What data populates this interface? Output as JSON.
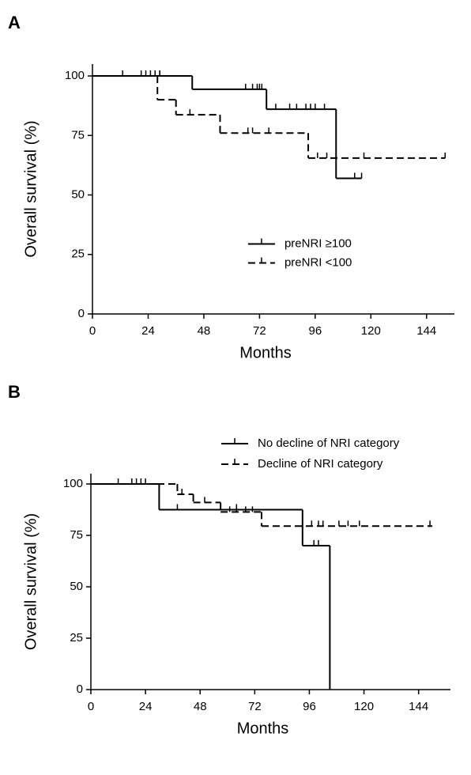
{
  "chart_data": [
    {
      "type": "survival",
      "panel": "A",
      "x_label": "Months",
      "y_label": "Overall survival (%)",
      "xlim": [
        0,
        156
      ],
      "ylim": [
        0,
        105
      ],
      "xticks": [
        0,
        24,
        48,
        72,
        96,
        120,
        144
      ],
      "yticks": [
        0,
        25,
        50,
        75,
        100
      ],
      "legend": "center",
      "series": [
        {
          "name": "preNRI ≥100",
          "color": "#000000",
          "linestyle": "solid",
          "x": [
            0,
            43,
            75,
            105,
            116
          ],
          "values": [
            100,
            94.4,
            86,
            57,
            57
          ],
          "censored": {
            "x": [
              13,
              21,
              23,
              25,
              27,
              29,
              66,
              69,
              71,
              72,
              73,
              79,
              85,
              88,
              92,
              94,
              96,
              100,
              113,
              116
            ],
            "values": [
              100,
              100,
              100,
              100,
              100,
              100,
              94.4,
              94.4,
              94.4,
              94.4,
              94.4,
              86,
              86,
              86,
              86,
              86,
              86,
              86,
              57,
              57
            ]
          }
        },
        {
          "name": "preNRI <100",
          "color": "#000000",
          "linestyle": "dashed",
          "x": [
            0,
            28,
            36,
            55,
            93,
            152
          ],
          "values": [
            100,
            90,
            83.7,
            76,
            65.5,
            65.5
          ],
          "censored": {
            "x": [
              29,
              42,
              67,
              69,
              76,
              97,
              101,
              117,
              152
            ],
            "values": [
              100,
              83.7,
              76,
              76,
              76,
              65.5,
              65.5,
              65.5,
              65.5
            ]
          }
        }
      ]
    },
    {
      "type": "survival",
      "panel": "B",
      "x_label": "Months",
      "y_label": "Overall survival (%)",
      "xlim": [
        0,
        158
      ],
      "ylim": [
        0,
        105
      ],
      "xticks": [
        0,
        24,
        48,
        72,
        96,
        120,
        144
      ],
      "yticks": [
        0,
        25,
        50,
        75,
        100
      ],
      "legend": "upper right",
      "series": [
        {
          "name": "No decline of NRI category",
          "color": "#000000",
          "linestyle": "solid",
          "x": [
            0,
            30,
            93,
            105
          ],
          "values": [
            100,
            87.5,
            70,
            0
          ],
          "censored": {
            "x": [
              12,
              18,
              20,
              22,
              24,
              38,
              64,
              98,
              100
            ],
            "values": [
              100,
              100,
              100,
              100,
              100,
              87.5,
              87.5,
              70,
              70
            ]
          }
        },
        {
          "name": "Decline of NRI category",
          "color": "#000000",
          "linestyle": "dashed",
          "x": [
            0,
            38,
            45,
            57,
            75,
            150
          ],
          "values": [
            100,
            95,
            91,
            86.4,
            79.5,
            79.5
          ],
          "censored": {
            "x": [
              40,
              50,
              61,
              64,
              68,
              71,
              97,
              100,
              102,
              109,
              113,
              118,
              149
            ],
            "values": [
              95,
              91,
              86.4,
              86.4,
              86.4,
              86.4,
              79.5,
              79.5,
              79.5,
              79.5,
              79.5,
              79.5,
              79.5
            ]
          }
        }
      ]
    }
  ]
}
